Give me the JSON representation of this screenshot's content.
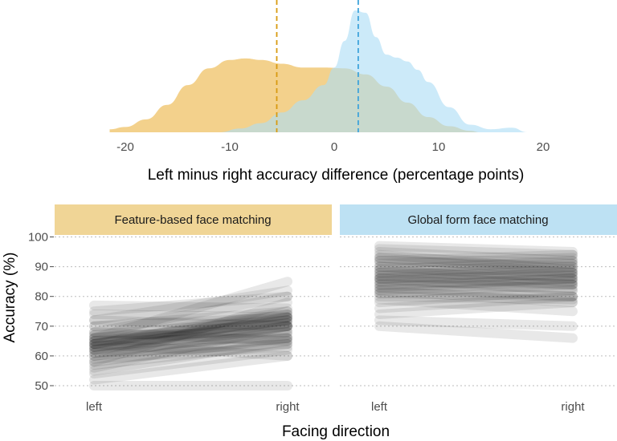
{
  "chart_data": [
    {
      "type": "area",
      "subtype": "density",
      "xlabel": "Left minus right accuracy difference (percentage points)",
      "ylabel": "",
      "xlim": [
        -22,
        20
      ],
      "x_ticks": [
        -20,
        -10,
        0,
        10,
        20
      ],
      "grid": false,
      "series": [
        {
          "color": "#F0C46C",
          "mean": -5.5,
          "x": [
            -21.5,
            -20,
            -18,
            -16,
            -14,
            -12,
            -10,
            -8.5,
            -7,
            -5,
            -3,
            -1,
            1,
            3,
            5,
            7,
            9,
            11,
            13,
            14
          ],
          "density": [
            0.04,
            0.07,
            0.17,
            0.36,
            0.62,
            0.84,
            0.95,
            0.97,
            0.95,
            0.9,
            0.85,
            0.85,
            0.84,
            0.76,
            0.6,
            0.39,
            0.2,
            0.08,
            0.02,
            0.0
          ]
        },
        {
          "color": "#ADDDF6",
          "mean": 2.3,
          "x": [
            -11,
            -9,
            -7,
            -5,
            -3,
            -1,
            0,
            1,
            2,
            3,
            4,
            5,
            6,
            7,
            8,
            9,
            11,
            13,
            15,
            17,
            18.5
          ],
          "density": [
            0.0,
            0.05,
            0.12,
            0.26,
            0.42,
            0.62,
            0.85,
            1.2,
            1.6,
            1.57,
            1.25,
            1.02,
            0.98,
            0.93,
            0.82,
            0.66,
            0.33,
            0.1,
            0.04,
            0.06,
            0.0
          ]
        }
      ]
    },
    {
      "type": "line",
      "subtype": "paired-slope",
      "xlabel": "Facing direction",
      "ylabel": "Accuracy (%)",
      "ylim": [
        48,
        100
      ],
      "y_ticks": [
        50,
        60,
        70,
        80,
        90,
        100
      ],
      "categories": [
        "left",
        "right"
      ],
      "grid": true,
      "panels": [
        {
          "title": "Feature-based face matching",
          "strip_color": "#F0D596",
          "pairs": [
            [
              62,
              70
            ],
            [
              63,
              71
            ],
            [
              64,
              72
            ],
            [
              65,
              70
            ],
            [
              62,
              73
            ],
            [
              66,
              71
            ],
            [
              63,
              69
            ],
            [
              64,
              74
            ],
            [
              61,
              68
            ],
            [
              65,
              73
            ],
            [
              63,
              72
            ],
            [
              60,
              70
            ],
            [
              67,
              72
            ],
            [
              62,
              67
            ],
            [
              64,
              75
            ],
            [
              66,
              74
            ],
            [
              58,
              66
            ],
            [
              70,
              73
            ],
            [
              72,
              70
            ],
            [
              55,
              65
            ],
            [
              57,
              64
            ],
            [
              52,
              60
            ],
            [
              50,
              50
            ],
            [
              54,
              62
            ],
            [
              60,
              66
            ],
            [
              68,
              80
            ],
            [
              66,
              85
            ],
            [
              58,
              78
            ],
            [
              72,
              82
            ],
            [
              75,
              80
            ],
            [
              77,
              76
            ],
            [
              68,
              65
            ],
            [
              64,
              60
            ],
            [
              61,
              64
            ],
            [
              70,
              75
            ],
            [
              74,
              73
            ],
            [
              56,
              70
            ],
            [
              59,
              63
            ],
            [
              67,
              68
            ],
            [
              65,
              66
            ]
          ]
        },
        {
          "title": "Global form face matching",
          "strip_color": "#BDE1F3",
          "pairs": [
            [
              84,
              86
            ],
            [
              85,
              84
            ],
            [
              86,
              82
            ],
            [
              88,
              87
            ],
            [
              82,
              85
            ],
            [
              87,
              90
            ],
            [
              90,
              88
            ],
            [
              83,
              80
            ],
            [
              86,
              87
            ],
            [
              84,
              83
            ],
            [
              89,
              85
            ],
            [
              81,
              84
            ],
            [
              92,
              90
            ],
            [
              93,
              88
            ],
            [
              95,
              92
            ],
            [
              96,
              94
            ],
            [
              97,
              95
            ],
            [
              80,
              79
            ],
            [
              78,
              82
            ],
            [
              76,
              80
            ],
            [
              74,
              78
            ],
            [
              72,
              70
            ],
            [
              70,
              66
            ],
            [
              91,
              93
            ],
            [
              94,
              89
            ],
            [
              88,
              91
            ],
            [
              87,
              84
            ],
            [
              85,
              88
            ],
            [
              79,
              75
            ],
            [
              83,
              86
            ],
            [
              82,
              78
            ],
            [
              86,
              89
            ],
            [
              90,
              86
            ],
            [
              93,
              91
            ],
            [
              89,
              92
            ],
            [
              92,
              94
            ],
            [
              81,
              80
            ]
          ]
        }
      ]
    }
  ]
}
